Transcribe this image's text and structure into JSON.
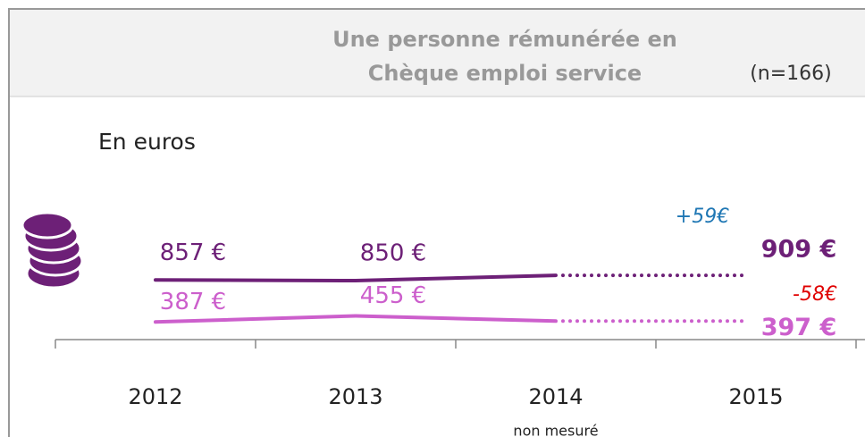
{
  "chart_data": {
    "type": "line",
    "title": [
      "Une personne rémunérée en",
      "Chèque emploi service"
    ],
    "subtitle": "(n=166)",
    "y_label": "En euros",
    "categories": [
      "2012",
      "2013",
      "2014",
      "2015"
    ],
    "category_notes": [
      null,
      null,
      "non mesuré",
      null
    ],
    "ylim": [
      0,
      4000
    ],
    "series": [
      {
        "color": "#6d2077",
        "values": [
          857,
          850,
          null,
          909
        ],
        "value_labels": [
          "857 €",
          "850 €",
          null,
          "909 €"
        ],
        "change": "+59€",
        "change_color": "#1f77b4"
      },
      {
        "color": "#cc5fcc",
        "values": [
          387,
          455,
          null,
          397
        ],
        "value_labels": [
          "387 €",
          "455 €",
          null,
          "397 €"
        ],
        "change": "-58€",
        "change_color": "#e00000"
      }
    ]
  }
}
